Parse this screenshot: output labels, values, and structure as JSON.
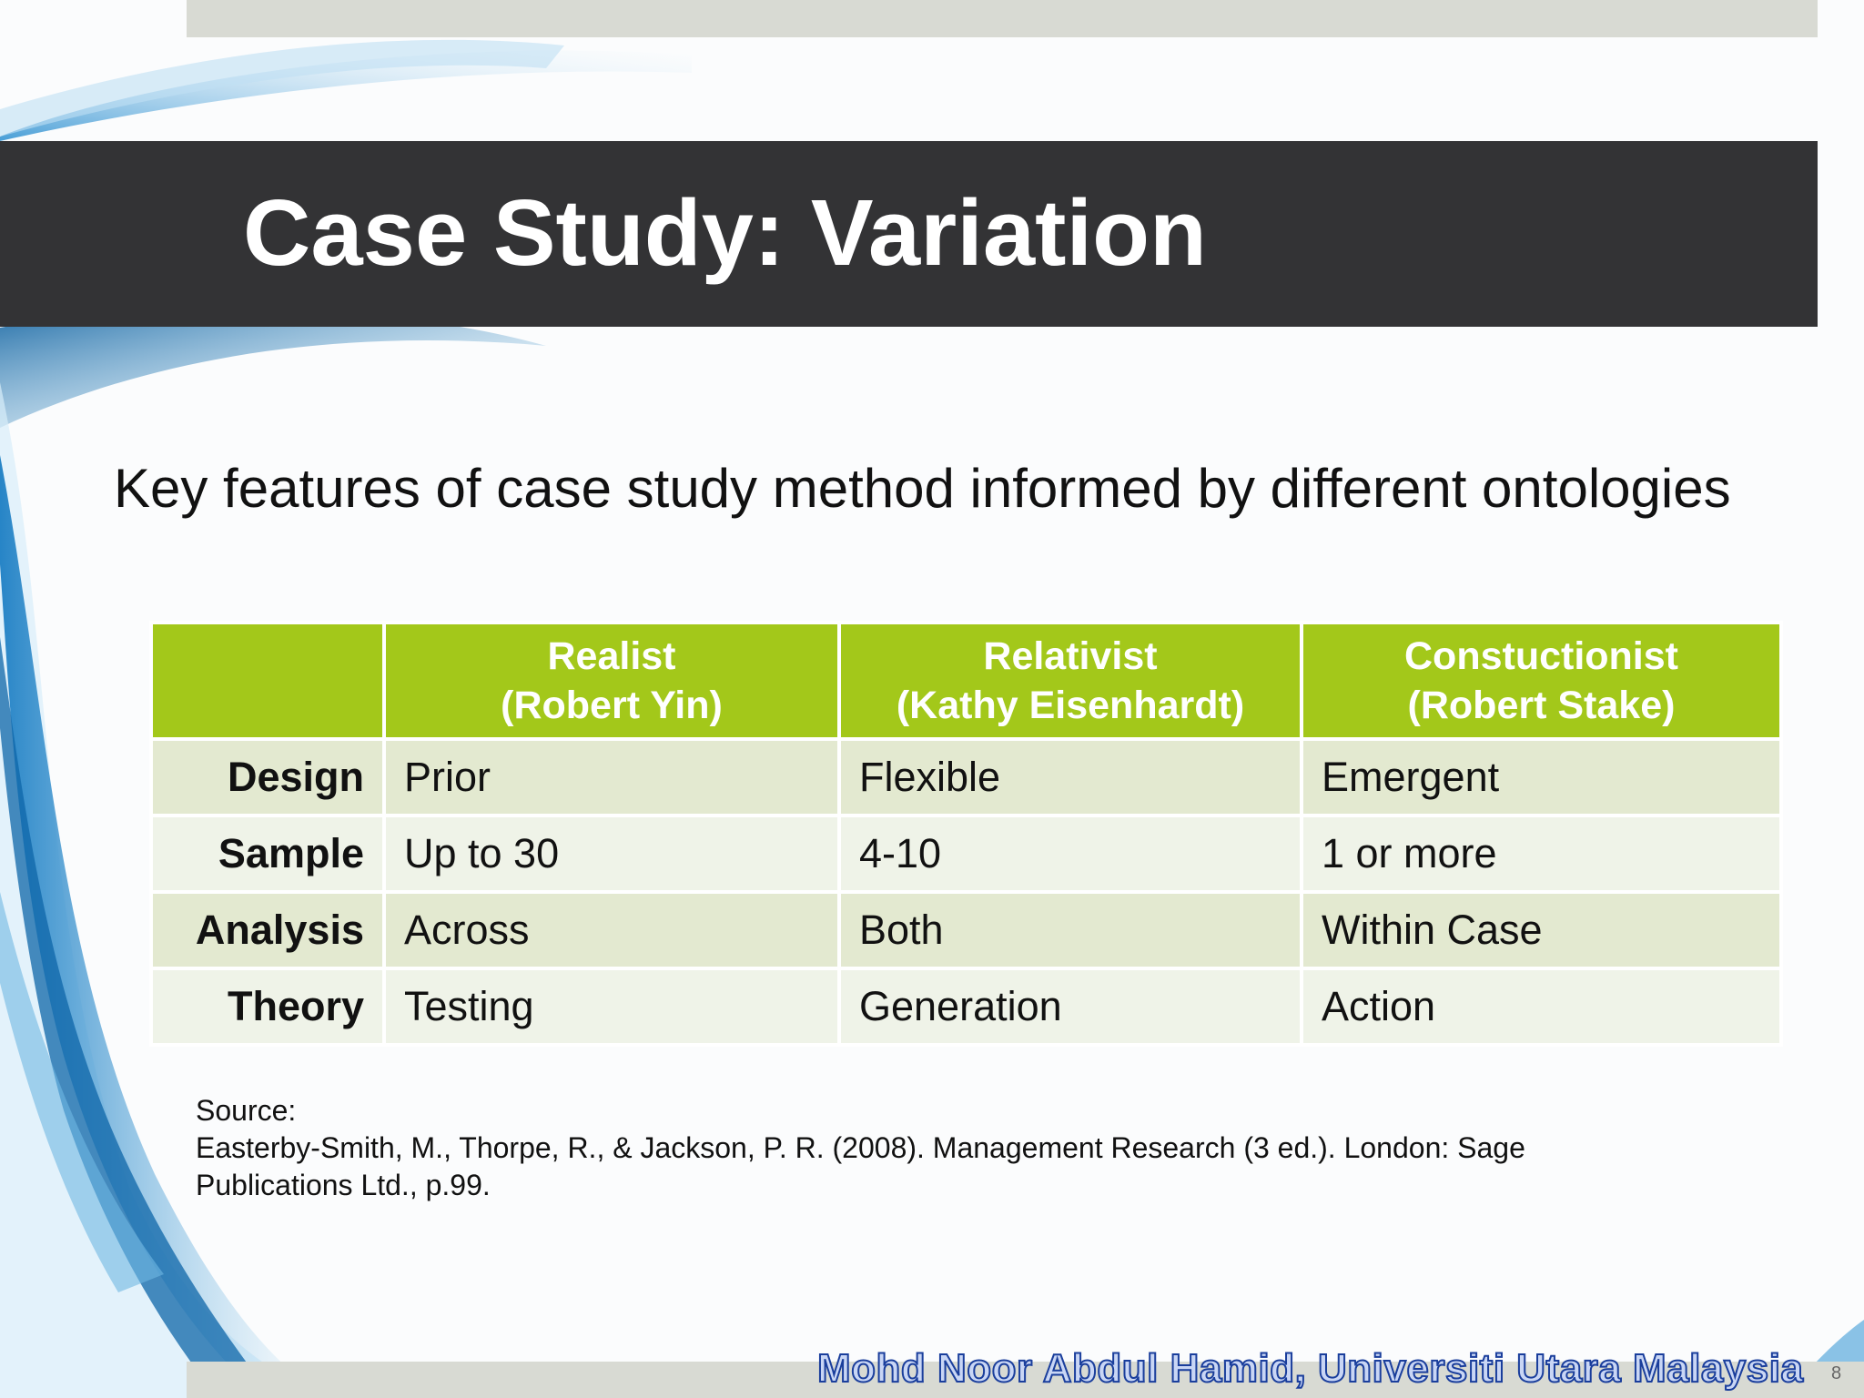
{
  "slide": {
    "title": "Case Study: Variation",
    "subtitle": "Key features of case study method informed by different ontologies"
  },
  "table": {
    "headers": [
      {
        "line1": "",
        "line2": ""
      },
      {
        "line1": "Realist",
        "line2": "(Robert Yin)"
      },
      {
        "line1": "Relativist",
        "line2": "(Kathy Eisenhardt)"
      },
      {
        "line1": "Constuctionist",
        "line2": "(Robert Stake)"
      }
    ],
    "rows": [
      {
        "label": "Design",
        "cells": [
          "Prior",
          "Flexible",
          "Emergent"
        ]
      },
      {
        "label": "Sample",
        "cells": [
          "Up to 30",
          "4-10",
          "1 or more"
        ]
      },
      {
        "label": "Analysis",
        "cells": [
          "Across",
          "Both",
          "Within Case"
        ]
      },
      {
        "label": "Theory",
        "cells": [
          "Testing",
          "Generation",
          "Action"
        ]
      }
    ]
  },
  "source": {
    "label": "Source:",
    "citation": "Easterby-Smith, M., Thorpe, R., & Jackson, P. R. (2008). Management Research (3 ed.). London: Sage Publications Ltd., p.99."
  },
  "footer": {
    "author": "Mohd Noor Abdul Hamid, Universiti Utara Malaysia",
    "page_number": "8"
  },
  "colors": {
    "title_band": "#333335",
    "table_header": "#a3c81a",
    "row_odd": "#e3e9d0",
    "row_even": "#eff3e8",
    "bars": "#d8dad3",
    "footer_text": "#1a3e9c"
  }
}
